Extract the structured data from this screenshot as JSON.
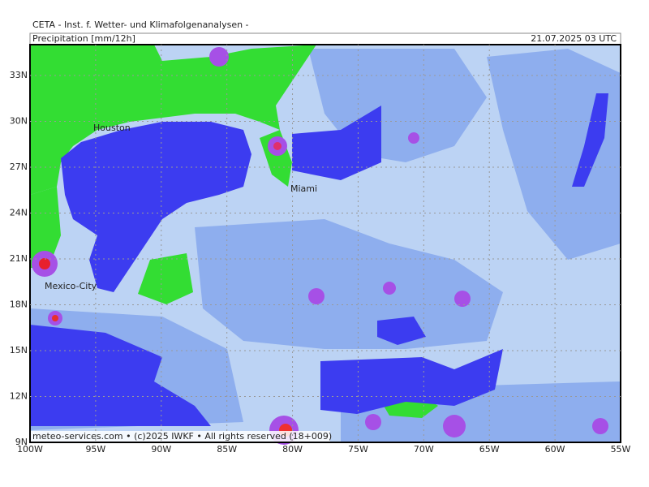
{
  "header": {
    "title": "CETA - Inst. f. Wetter- und Klimafolgenanalysen -",
    "parameter": "Precipitation [mm/12h]",
    "valid_time": "21.07.2025 03 UTC"
  },
  "map": {
    "lat_labels": [
      "33N",
      "30N",
      "27N",
      "24N",
      "21N",
      "18N",
      "15N",
      "12N",
      "9N"
    ],
    "lon_labels": [
      "100W",
      "95W",
      "90W",
      "85W",
      "80W",
      "75W",
      "70W",
      "65W",
      "60W",
      "55W"
    ],
    "cities": [
      "Houston",
      "Miami",
      "Mexico-City"
    ],
    "footer": "meteo-services.com • (c)2025 IWKF • All rights reserved (18+009)"
  }
}
